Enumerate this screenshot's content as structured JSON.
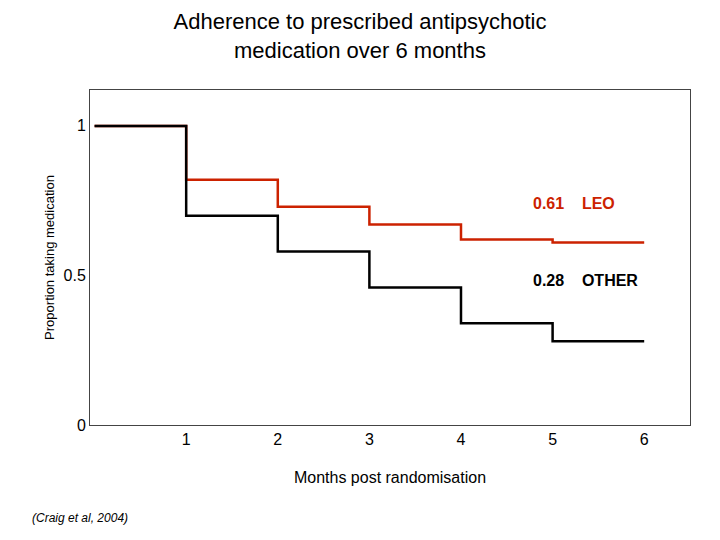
{
  "chart_data": {
    "type": "line",
    "title": "Adherence to prescribed antipsychotic\nmedication over 6 months",
    "xlabel": "Months post randomisation",
    "ylabel": "Proportion taking medication",
    "x": [
      0,
      1,
      1,
      2,
      2,
      3,
      3,
      4,
      4,
      5,
      5,
      6
    ],
    "series": [
      {
        "color": "#cc2200",
        "values": [
          1.0,
          1.0,
          0.82,
          0.82,
          0.73,
          0.73,
          0.67,
          0.67,
          0.62,
          0.62,
          0.61,
          0.61
        ]
      },
      {
        "color": "#000000",
        "values": [
          1.0,
          1.0,
          0.7,
          0.7,
          0.58,
          0.58,
          0.46,
          0.46,
          0.34,
          0.34,
          0.28,
          0.28
        ]
      }
    ],
    "xlim": [
      -0.05,
      6.5
    ],
    "xticks": [
      1,
      2,
      3,
      4,
      5,
      6
    ],
    "ylim": [
      0,
      1.12
    ],
    "yticks": [
      0,
      0.5,
      1
    ],
    "grid": false,
    "annotations": [
      {
        "text": "0.61    LEO",
        "color": "#cc2200"
      },
      {
        "text": "0.28    OTHER",
        "color": "#000000"
      },
      {
        "text": "(Craig et al, 2004)"
      }
    ]
  }
}
